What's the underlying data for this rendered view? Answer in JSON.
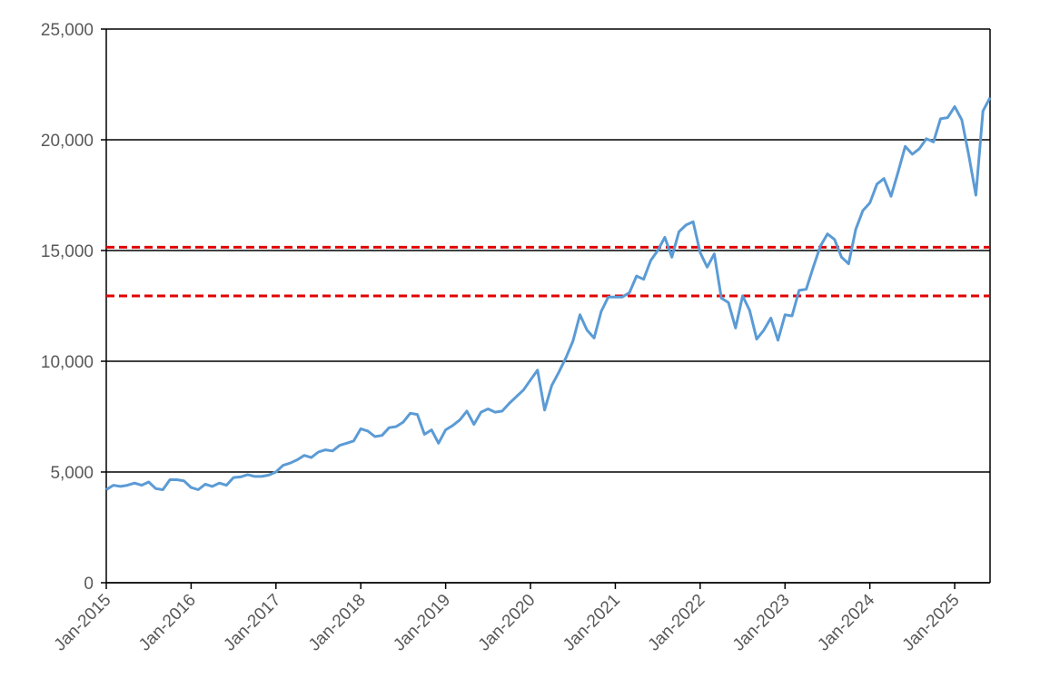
{
  "chart_data": {
    "type": "line",
    "x": [
      "2015-01",
      "2015-02",
      "2015-03",
      "2015-04",
      "2015-05",
      "2015-06",
      "2015-07",
      "2015-08",
      "2015-09",
      "2015-10",
      "2015-11",
      "2015-12",
      "2016-01",
      "2016-02",
      "2016-03",
      "2016-04",
      "2016-05",
      "2016-06",
      "2016-07",
      "2016-08",
      "2016-09",
      "2016-10",
      "2016-11",
      "2016-12",
      "2017-01",
      "2017-02",
      "2017-03",
      "2017-04",
      "2017-05",
      "2017-06",
      "2017-07",
      "2017-08",
      "2017-09",
      "2017-10",
      "2017-11",
      "2017-12",
      "2018-01",
      "2018-02",
      "2018-03",
      "2018-04",
      "2018-05",
      "2018-06",
      "2018-07",
      "2018-08",
      "2018-09",
      "2018-10",
      "2018-11",
      "2018-12",
      "2019-01",
      "2019-02",
      "2019-03",
      "2019-04",
      "2019-05",
      "2019-06",
      "2019-07",
      "2019-08",
      "2019-09",
      "2019-10",
      "2019-11",
      "2019-12",
      "2020-01",
      "2020-02",
      "2020-03",
      "2020-04",
      "2020-05",
      "2020-06",
      "2020-07",
      "2020-08",
      "2020-09",
      "2020-10",
      "2020-11",
      "2020-12",
      "2021-01",
      "2021-02",
      "2021-03",
      "2021-04",
      "2021-05",
      "2021-06",
      "2021-07",
      "2021-08",
      "2021-09",
      "2021-10",
      "2021-11",
      "2021-12",
      "2022-01",
      "2022-02",
      "2022-03",
      "2022-04",
      "2022-05",
      "2022-06",
      "2022-07",
      "2022-08",
      "2022-09",
      "2022-10",
      "2022-11",
      "2022-12",
      "2023-01",
      "2023-02",
      "2023-03",
      "2023-04",
      "2023-05",
      "2023-06",
      "2023-07",
      "2023-08",
      "2023-09",
      "2023-10",
      "2023-11",
      "2023-12",
      "2024-01",
      "2024-02",
      "2024-03",
      "2024-04",
      "2024-05",
      "2024-06",
      "2024-07",
      "2024-08",
      "2024-09",
      "2024-10",
      "2024-11",
      "2024-12",
      "2025-01",
      "2025-02",
      "2025-03",
      "2025-04",
      "2025-05",
      "2025-06"
    ],
    "series": [
      {
        "color": "#5b9bd5",
        "values": [
          4200,
          4400,
          4350,
          4400,
          4500,
          4400,
          4550,
          4250,
          4200,
          4650,
          4650,
          4600,
          4300,
          4200,
          4450,
          4350,
          4500,
          4400,
          4750,
          4780,
          4880,
          4800,
          4800,
          4860,
          5000,
          5300,
          5400,
          5550,
          5750,
          5650,
          5900,
          6000,
          5950,
          6200,
          6300,
          6400,
          6950,
          6850,
          6600,
          6650,
          7000,
          7050,
          7250,
          7650,
          7600,
          6700,
          6900,
          6300,
          6900,
          7100,
          7350,
          7750,
          7150,
          7700,
          7850,
          7700,
          7750,
          8100,
          8400,
          8700,
          9150,
          9600,
          7800,
          8900,
          9500,
          10150,
          10900,
          12100,
          11400,
          11050,
          12250,
          12900,
          12900,
          12900,
          13100,
          13850,
          13700,
          14550,
          15000,
          15600,
          14700,
          15850,
          16150,
          16300,
          14900,
          14250,
          14850,
          12850,
          12650,
          11500,
          12950,
          12300,
          11000,
          11400,
          11950,
          10950,
          12100,
          12050,
          13200,
          13250,
          14250,
          15200,
          15750,
          15500,
          14700,
          14400,
          15950,
          16800,
          17150,
          18000,
          18250,
          17450,
          18550,
          19700,
          19350,
          19600,
          20050,
          19900,
          20950,
          21000,
          21500,
          20900,
          19300,
          17500,
          21300,
          21900
        ]
      }
    ],
    "xlim": [
      "2015-01",
      "2025-06"
    ],
    "xticks": [
      {
        "value": "2015-01",
        "label": "Jan-2015"
      },
      {
        "value": "2016-01",
        "label": "Jan-2016"
      },
      {
        "value": "2017-01",
        "label": "Jan-2017"
      },
      {
        "value": "2018-01",
        "label": "Jan-2018"
      },
      {
        "value": "2019-01",
        "label": "Jan-2019"
      },
      {
        "value": "2020-01",
        "label": "Jan-2020"
      },
      {
        "value": "2021-01",
        "label": "Jan-2021"
      },
      {
        "value": "2022-01",
        "label": "Jan-2022"
      },
      {
        "value": "2023-01",
        "label": "Jan-2023"
      },
      {
        "value": "2024-01",
        "label": "Jan-2024"
      },
      {
        "value": "2025-01",
        "label": "Jan-2025"
      }
    ],
    "ylim": [
      0,
      25000
    ],
    "yticks": [
      0,
      {
        "value": 5000,
        "label": "5,000"
      },
      {
        "value": 10000,
        "label": "10,000"
      },
      {
        "value": 15000,
        "label": "15,000"
      },
      {
        "value": 20000,
        "label": "20,000"
      },
      {
        "value": 25000,
        "label": "25,000"
      }
    ],
    "grid": true,
    "reference_lines": [
      {
        "value": 15150,
        "color": "#e00000"
      },
      {
        "value": 12950,
        "color": "#e00000"
      }
    ]
  }
}
